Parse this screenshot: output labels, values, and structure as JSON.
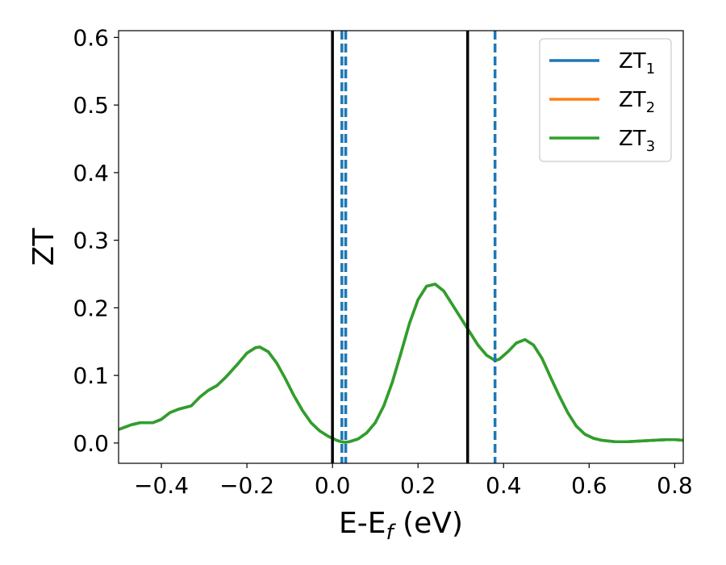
{
  "chart_data": {
    "type": "line",
    "title": "",
    "xlabel": "E-E_f (eV)",
    "ylabel": "ZT",
    "xlim": [
      -0.5,
      0.82
    ],
    "ylim": [
      -0.03,
      0.61
    ],
    "grid": false,
    "legend_position": "top-right",
    "x_ticks": [
      -0.4,
      -0.2,
      0.0,
      0.2,
      0.4,
      0.6,
      0.8
    ],
    "x_tick_labels": [
      "−0.4",
      "−0.2",
      "0.0",
      "0.2",
      "0.4",
      "0.6",
      "0.8"
    ],
    "y_ticks": [
      0.0,
      0.1,
      0.2,
      0.3,
      0.4,
      0.5,
      0.6
    ],
    "y_tick_labels": [
      "0.0",
      "0.1",
      "0.2",
      "0.3",
      "0.4",
      "0.5",
      "0.6"
    ],
    "legend": {
      "entries": [
        {
          "label": "ZT",
          "subscript": "1",
          "color": "#1f77b4"
        },
        {
          "label": "ZT",
          "subscript": "2",
          "color": "#ff7f0e"
        },
        {
          "label": "ZT",
          "subscript": "3",
          "color": "#2ca02c"
        }
      ]
    },
    "series": [
      {
        "name": "ZT1",
        "color": "#1f77b4",
        "x": [
          -0.5,
          -0.47,
          -0.45,
          -0.42,
          -0.4,
          -0.38,
          -0.36,
          -0.33,
          -0.31,
          -0.29,
          -0.27,
          -0.25,
          -0.22,
          -0.2,
          -0.18,
          -0.17,
          -0.15,
          -0.13,
          -0.11,
          -0.09,
          -0.07,
          -0.05,
          -0.03,
          -0.01,
          0.0,
          0.01,
          0.02,
          0.03,
          0.04,
          0.06,
          0.08,
          0.1,
          0.12,
          0.14,
          0.16,
          0.18,
          0.2,
          0.22,
          0.24,
          0.26,
          0.28,
          0.3,
          0.32,
          0.34,
          0.36,
          0.38,
          0.39,
          0.41,
          0.43,
          0.45,
          0.47,
          0.49,
          0.51,
          0.53,
          0.55,
          0.57,
          0.59,
          0.61,
          0.63,
          0.66,
          0.69,
          0.72,
          0.75,
          0.78,
          0.8,
          0.82
        ],
        "y": [
          0.02,
          0.027,
          0.03,
          0.03,
          0.035,
          0.045,
          0.05,
          0.055,
          0.068,
          0.078,
          0.085,
          0.097,
          0.118,
          0.133,
          0.141,
          0.142,
          0.135,
          0.118,
          0.095,
          0.07,
          0.048,
          0.03,
          0.018,
          0.01,
          0.007,
          0.004,
          0.002,
          0.001,
          0.002,
          0.006,
          0.015,
          0.03,
          0.055,
          0.09,
          0.133,
          0.177,
          0.212,
          0.232,
          0.235,
          0.225,
          0.205,
          0.185,
          0.165,
          0.145,
          0.13,
          0.122,
          0.124,
          0.135,
          0.148,
          0.153,
          0.145,
          0.125,
          0.097,
          0.07,
          0.045,
          0.025,
          0.013,
          0.007,
          0.004,
          0.002,
          0.002,
          0.003,
          0.004,
          0.005,
          0.005,
          0.004
        ]
      },
      {
        "name": "ZT2",
        "color": "#ff7f0e",
        "x": [
          -0.5,
          -0.47,
          -0.45,
          -0.42,
          -0.4,
          -0.38,
          -0.36,
          -0.33,
          -0.31,
          -0.29,
          -0.27,
          -0.25,
          -0.22,
          -0.2,
          -0.18,
          -0.17,
          -0.15,
          -0.13,
          -0.11,
          -0.09,
          -0.07,
          -0.05,
          -0.03,
          -0.01,
          0.0,
          0.01,
          0.02,
          0.03,
          0.04,
          0.06,
          0.08,
          0.1,
          0.12,
          0.14,
          0.16,
          0.18,
          0.2,
          0.22,
          0.24,
          0.26,
          0.28,
          0.3,
          0.32,
          0.34,
          0.36,
          0.38,
          0.39,
          0.41,
          0.43,
          0.45,
          0.47,
          0.49,
          0.51,
          0.53,
          0.55,
          0.57,
          0.59,
          0.61,
          0.63,
          0.66,
          0.69,
          0.72,
          0.75,
          0.78,
          0.8,
          0.82
        ],
        "y": [
          0.02,
          0.027,
          0.03,
          0.03,
          0.035,
          0.045,
          0.05,
          0.055,
          0.068,
          0.078,
          0.085,
          0.097,
          0.118,
          0.133,
          0.141,
          0.142,
          0.135,
          0.118,
          0.095,
          0.07,
          0.048,
          0.03,
          0.018,
          0.01,
          0.007,
          0.004,
          0.002,
          0.001,
          0.002,
          0.006,
          0.015,
          0.03,
          0.055,
          0.09,
          0.133,
          0.177,
          0.212,
          0.232,
          0.235,
          0.225,
          0.205,
          0.185,
          0.165,
          0.145,
          0.13,
          0.122,
          0.124,
          0.135,
          0.148,
          0.153,
          0.145,
          0.125,
          0.097,
          0.07,
          0.045,
          0.025,
          0.013,
          0.007,
          0.004,
          0.002,
          0.002,
          0.003,
          0.004,
          0.005,
          0.005,
          0.004
        ]
      },
      {
        "name": "ZT3",
        "color": "#2ca02c",
        "x": [
          -0.5,
          -0.47,
          -0.45,
          -0.42,
          -0.4,
          -0.38,
          -0.36,
          -0.33,
          -0.31,
          -0.29,
          -0.27,
          -0.25,
          -0.22,
          -0.2,
          -0.18,
          -0.17,
          -0.15,
          -0.13,
          -0.11,
          -0.09,
          -0.07,
          -0.05,
          -0.03,
          -0.01,
          0.0,
          0.01,
          0.02,
          0.03,
          0.04,
          0.06,
          0.08,
          0.1,
          0.12,
          0.14,
          0.16,
          0.18,
          0.2,
          0.22,
          0.24,
          0.26,
          0.28,
          0.3,
          0.32,
          0.34,
          0.36,
          0.38,
          0.39,
          0.41,
          0.43,
          0.45,
          0.47,
          0.49,
          0.51,
          0.53,
          0.55,
          0.57,
          0.59,
          0.61,
          0.63,
          0.66,
          0.69,
          0.72,
          0.75,
          0.78,
          0.8,
          0.82
        ],
        "y": [
          0.02,
          0.027,
          0.03,
          0.03,
          0.035,
          0.045,
          0.05,
          0.055,
          0.068,
          0.078,
          0.085,
          0.097,
          0.118,
          0.133,
          0.141,
          0.142,
          0.135,
          0.118,
          0.095,
          0.07,
          0.048,
          0.03,
          0.018,
          0.01,
          0.007,
          0.004,
          0.002,
          0.001,
          0.002,
          0.006,
          0.015,
          0.03,
          0.055,
          0.09,
          0.133,
          0.177,
          0.212,
          0.232,
          0.235,
          0.225,
          0.205,
          0.185,
          0.165,
          0.145,
          0.13,
          0.122,
          0.124,
          0.135,
          0.148,
          0.153,
          0.145,
          0.125,
          0.097,
          0.07,
          0.045,
          0.025,
          0.013,
          0.007,
          0.004,
          0.002,
          0.002,
          0.003,
          0.004,
          0.005,
          0.005,
          0.004
        ]
      }
    ],
    "vertical_lines": [
      {
        "x": 0.0,
        "style": "solid",
        "color": "#000000"
      },
      {
        "x": 0.316,
        "style": "solid",
        "color": "#000000"
      },
      {
        "x": 0.022,
        "style": "dashed",
        "color": "#1f77b4"
      },
      {
        "x": 0.031,
        "style": "dashed",
        "color": "#1f77b4"
      },
      {
        "x": 0.38,
        "style": "dashed",
        "color": "#1f77b4"
      }
    ]
  }
}
